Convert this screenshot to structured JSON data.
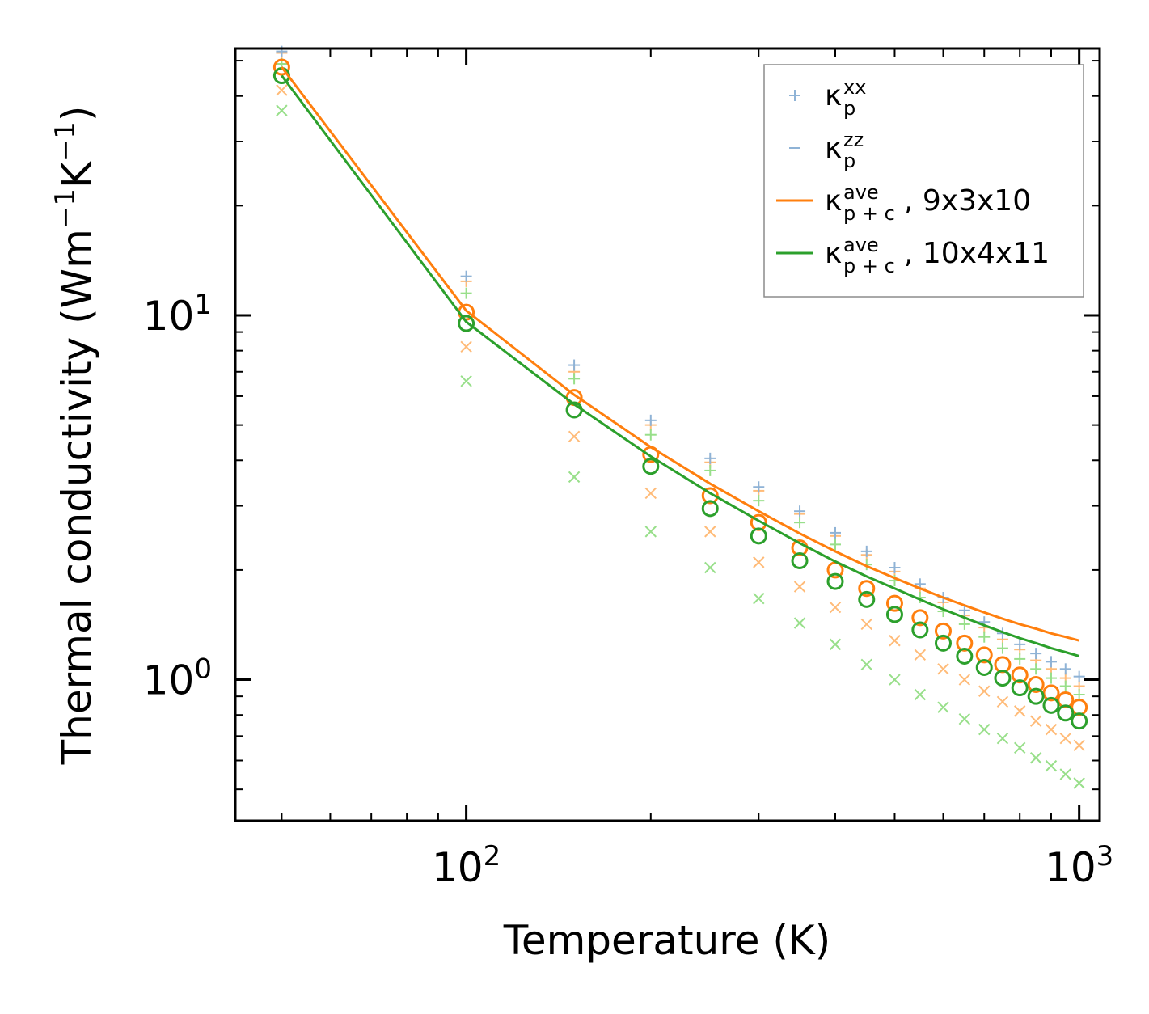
{
  "chart_data": {
    "type": "scatter",
    "xscale": "log",
    "yscale": "log",
    "xlabel": "Temperature (K)",
    "ylabel": "Thermal conductivity (Wm",
    "ylabel_unit_mid": "K",
    "ylabel_exp": "−1",
    "ylabel_close": ")",
    "xlim": [
      42,
      1080
    ],
    "ylim": [
      0.41,
      54
    ],
    "xticks": [
      {
        "value": 100,
        "base": "10",
        "exp": "2"
      },
      {
        "value": 1000,
        "base": "10",
        "exp": "3"
      }
    ],
    "yticks": [
      {
        "value": 1,
        "base": "10",
        "exp": "0"
      },
      {
        "value": 10,
        "base": "10",
        "exp": "1"
      }
    ],
    "temperatures": [
      50,
      100,
      150,
      200,
      250,
      300,
      350,
      400,
      450,
      500,
      550,
      600,
      650,
      700,
      750,
      800,
      850,
      900,
      950,
      1000
    ],
    "series": [
      {
        "name": "κp_xx 9x3x10",
        "marker": "plus",
        "color": "#ffbb78",
        "values": [
          52.5,
          12.4,
          7.0,
          5.0,
          3.95,
          3.3,
          2.85,
          2.48,
          2.2,
          1.98,
          1.78,
          1.63,
          1.5,
          1.39,
          1.29,
          1.21,
          1.13,
          1.07,
          1.01,
          0.96
        ]
      },
      {
        "name": "κp_xx 10x4x11",
        "marker": "plus",
        "color": "#98df8a",
        "values": [
          49.0,
          11.5,
          6.7,
          4.7,
          3.75,
          3.1,
          2.7,
          2.35,
          2.07,
          1.87,
          1.68,
          1.54,
          1.42,
          1.31,
          1.22,
          1.14,
          1.07,
          1.01,
          0.96,
          0.91
        ]
      },
      {
        "name": "κp_xx",
        "marker": "plus",
        "color": "#8fb3d6",
        "values": [
          53.0,
          12.8,
          7.3,
          5.15,
          4.05,
          3.38,
          2.9,
          2.53,
          2.25,
          2.03,
          1.83,
          1.68,
          1.55,
          1.44,
          1.34,
          1.25,
          1.18,
          1.12,
          1.07,
          1.02
        ]
      },
      {
        "name": "κp_zz 9x3x10",
        "marker": "cross",
        "color": "#ffbb78",
        "values": [
          41.5,
          8.2,
          4.65,
          3.25,
          2.55,
          2.1,
          1.8,
          1.58,
          1.42,
          1.28,
          1.17,
          1.07,
          1.0,
          0.93,
          0.87,
          0.82,
          0.77,
          0.73,
          0.69,
          0.66
        ]
      },
      {
        "name": "κp_zz 10x4x11",
        "marker": "cross",
        "color": "#98df8a",
        "values": [
          36.5,
          6.6,
          3.6,
          2.55,
          2.03,
          1.67,
          1.43,
          1.25,
          1.1,
          1.0,
          0.91,
          0.84,
          0.78,
          0.73,
          0.69,
          0.65,
          0.61,
          0.58,
          0.55,
          0.52
        ]
      },
      {
        "name": "κp+c_ave 9x3x10 (points)",
        "marker": "circle",
        "color": "#ff7f0e",
        "values": [
          48.0,
          10.2,
          5.95,
          4.15,
          3.2,
          2.7,
          2.3,
          2.0,
          1.78,
          1.62,
          1.48,
          1.36,
          1.26,
          1.17,
          1.1,
          1.03,
          0.97,
          0.92,
          0.88,
          0.84
        ]
      },
      {
        "name": "κp+c_ave 10x4x11 (points)",
        "marker": "circle",
        "color": "#2ca02c",
        "values": [
          45.5,
          9.5,
          5.5,
          3.85,
          2.95,
          2.48,
          2.12,
          1.86,
          1.66,
          1.51,
          1.37,
          1.26,
          1.16,
          1.08,
          1.01,
          0.95,
          0.9,
          0.85,
          0.81,
          0.77
        ]
      },
      {
        "name": "κp+c_ave 9x3x10 (line)",
        "marker": "line",
        "color": "#ff7f0e",
        "values": [
          48.0,
          10.3,
          6.05,
          4.35,
          3.45,
          2.9,
          2.52,
          2.25,
          2.05,
          1.9,
          1.78,
          1.68,
          1.6,
          1.53,
          1.47,
          1.42,
          1.38,
          1.34,
          1.31,
          1.28
        ]
      },
      {
        "name": "κp+c_ave 10x4x11 (line)",
        "marker": "line",
        "color": "#2ca02c",
        "values": [
          45.5,
          9.6,
          5.7,
          4.1,
          3.25,
          2.73,
          2.37,
          2.11,
          1.92,
          1.78,
          1.66,
          1.56,
          1.48,
          1.41,
          1.35,
          1.3,
          1.26,
          1.22,
          1.19,
          1.16
        ]
      }
    ],
    "legend": {
      "position": "top-right",
      "entries": [
        {
          "marker": "plus",
          "color": "#8fb3d6",
          "symbol": "κ",
          "sub": "p",
          "sup": "xx",
          "suffix": ""
        },
        {
          "marker": "dash",
          "color": "#8fb3d6",
          "symbol": "κ",
          "sub": "p",
          "sup": "zz",
          "suffix": ""
        },
        {
          "marker": "line",
          "color": "#ff7f0e",
          "symbol": "κ",
          "sub": "p + c",
          "sup": "ave",
          "suffix": ", 9x3x10"
        },
        {
          "marker": "line",
          "color": "#2ca02c",
          "symbol": "κ",
          "sub": "p + c",
          "sup": "ave",
          "suffix": ", 10x4x11"
        }
      ]
    }
  }
}
